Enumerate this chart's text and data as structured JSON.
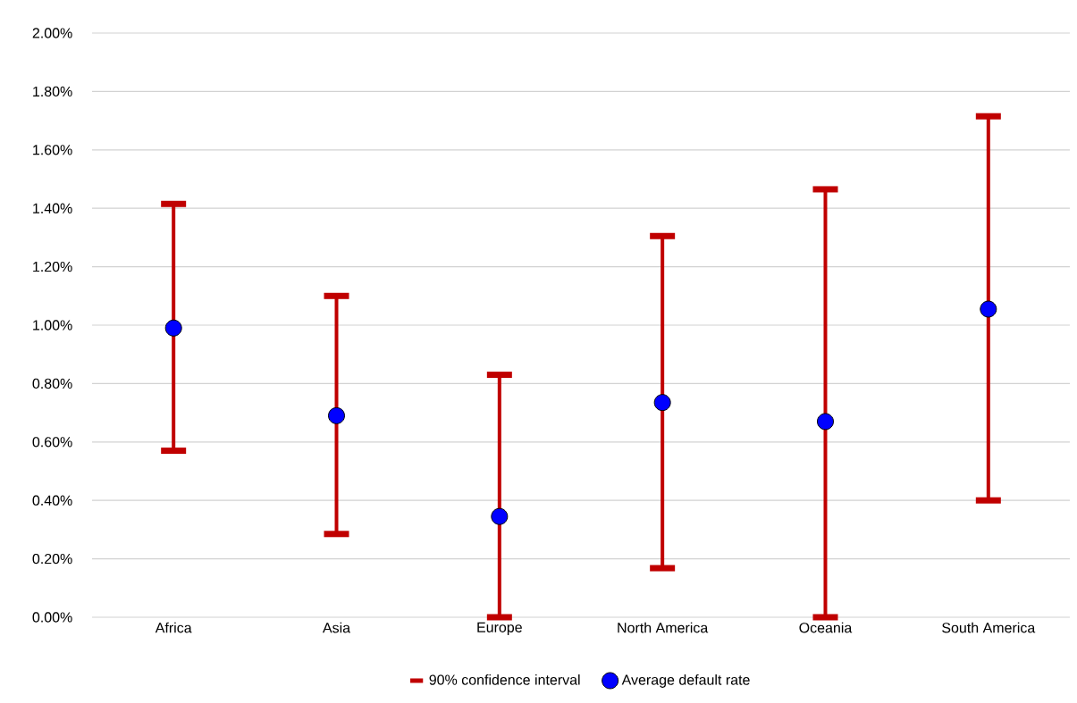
{
  "chart_data": {
    "type": "scatter",
    "categories": [
      "Africa",
      "Asia",
      "Europe",
      "North America",
      "Oceania",
      "South America"
    ],
    "series": [
      {
        "name": "90% confidence interval",
        "color": "#c00000",
        "marker": "none",
        "values": [
          null,
          null,
          null,
          null,
          null,
          null
        ]
      },
      {
        "name": "Average default rate",
        "color": "#0000ff",
        "marker": "circle",
        "values": [
          0.99,
          0.69,
          0.345,
          0.735,
          0.67,
          1.055
        ],
        "errors": [
          [
            0.57,
            1.415
          ],
          [
            0.285,
            1.1
          ],
          [
            0,
            0.83
          ],
          [
            0.168,
            1.305
          ],
          [
            0,
            1.465
          ],
          [
            0.4,
            1.715
          ]
        ]
      }
    ],
    "ylim": [
      0,
      2
    ],
    "yticks": [
      {
        "value": 0,
        "label": "0.00%"
      },
      {
        "value": 0.2,
        "label": "0.20%"
      },
      {
        "value": 0.4,
        "label": "0.40%"
      },
      {
        "value": 0.6,
        "label": "0.60%"
      },
      {
        "value": 0.8,
        "label": "0.80%"
      },
      {
        "value": 1.0,
        "label": "1.00%"
      },
      {
        "value": 1.2,
        "label": "1.20%"
      },
      {
        "value": 1.4,
        "label": "1.40%"
      },
      {
        "value": 1.6,
        "label": "1.60%"
      },
      {
        "value": 1.8,
        "label": "1.80%"
      },
      {
        "value": 2.0,
        "label": "2.00%"
      }
    ],
    "grid": "y",
    "legend": "bottom"
  }
}
